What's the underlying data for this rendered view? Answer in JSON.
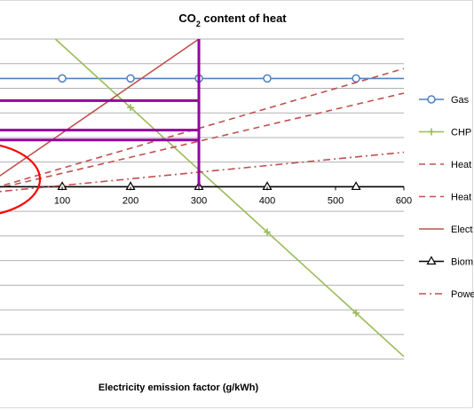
{
  "chart_data": {
    "type": "line",
    "title": "CO2 content of heat",
    "title_parts": {
      "prefix": "CO",
      "subscript": "2",
      "suffix": " content of heat"
    },
    "xlabel": "Electricity emission factor (g/kWh)",
    "ylabel": "",
    "xlim": [
      -30,
      600
    ],
    "x_ticks": [
      100,
      200,
      300,
      400,
      500,
      600
    ],
    "x_tick_labels": [
      "100",
      "200",
      "300",
      "400",
      "500",
      "600"
    ],
    "y_gridlines": [
      -7,
      -6,
      -5,
      -4,
      -3,
      -2,
      -1,
      0,
      1,
      2,
      3,
      4,
      5,
      6
    ],
    "ylim": [
      -7.7,
      6
    ],
    "grid": true,
    "legend_position": "right",
    "series": [
      {
        "name": "Gas",
        "color": "#4f81bd",
        "style": "solid-circle-marker",
        "x": [
          -30,
          100,
          200,
          300,
          400,
          530,
          600
        ],
        "y": [
          4.4,
          4.4,
          4.4,
          4.4,
          4.4,
          4.4,
          4.4
        ],
        "markers_x": [
          100,
          200,
          300,
          400,
          530
        ]
      },
      {
        "name": "CHP",
        "color": "#9bbb59",
        "style": "solid-plus-marker",
        "x": [
          90,
          600
        ],
        "y": [
          6,
          -6.9
        ],
        "markers_x": [
          200,
          400,
          530
        ]
      },
      {
        "name": "Heat",
        "color": "#c0504d",
        "style": "dashed",
        "x": [
          -30,
          600
        ],
        "y": [
          -0.3,
          4.8
        ]
      },
      {
        "name": "Heat",
        "color": "#c0504d",
        "style": "dashed",
        "x": [
          -30,
          600
        ],
        "y": [
          -0.3,
          3.8
        ]
      },
      {
        "name": "Elect",
        "color": "#c0504d",
        "style": "solid",
        "x": [
          -30,
          300
        ],
        "y": [
          -0.3,
          6
        ]
      },
      {
        "name": "Biom",
        "color": "#000000",
        "style": "solid-triangle-marker",
        "x": [
          -30,
          600
        ],
        "y": [
          0,
          0
        ],
        "markers_x": [
          0,
          100,
          200,
          300,
          400,
          530
        ]
      },
      {
        "name": "Powe",
        "color": "#c0504d",
        "style": "dashdot",
        "x": [
          -30,
          600
        ],
        "y": [
          -0.3,
          1.4
        ]
      }
    ],
    "annotations": {
      "purple_color": "#9400a0",
      "purple_vertical": {
        "x": 300,
        "y": [
          0,
          6
        ]
      },
      "purple_horizontal": [
        {
          "y": 3.5,
          "x": [
            -30,
            300
          ]
        },
        {
          "y": 2.3,
          "x": [
            -30,
            300
          ]
        },
        {
          "y": 1.9,
          "x": [
            -30,
            300
          ]
        }
      ],
      "red_circle_color": "#ff0000",
      "red_circle": {
        "cx": -30,
        "cy": 0.3,
        "rx": 75,
        "ry": 1.5
      }
    }
  }
}
